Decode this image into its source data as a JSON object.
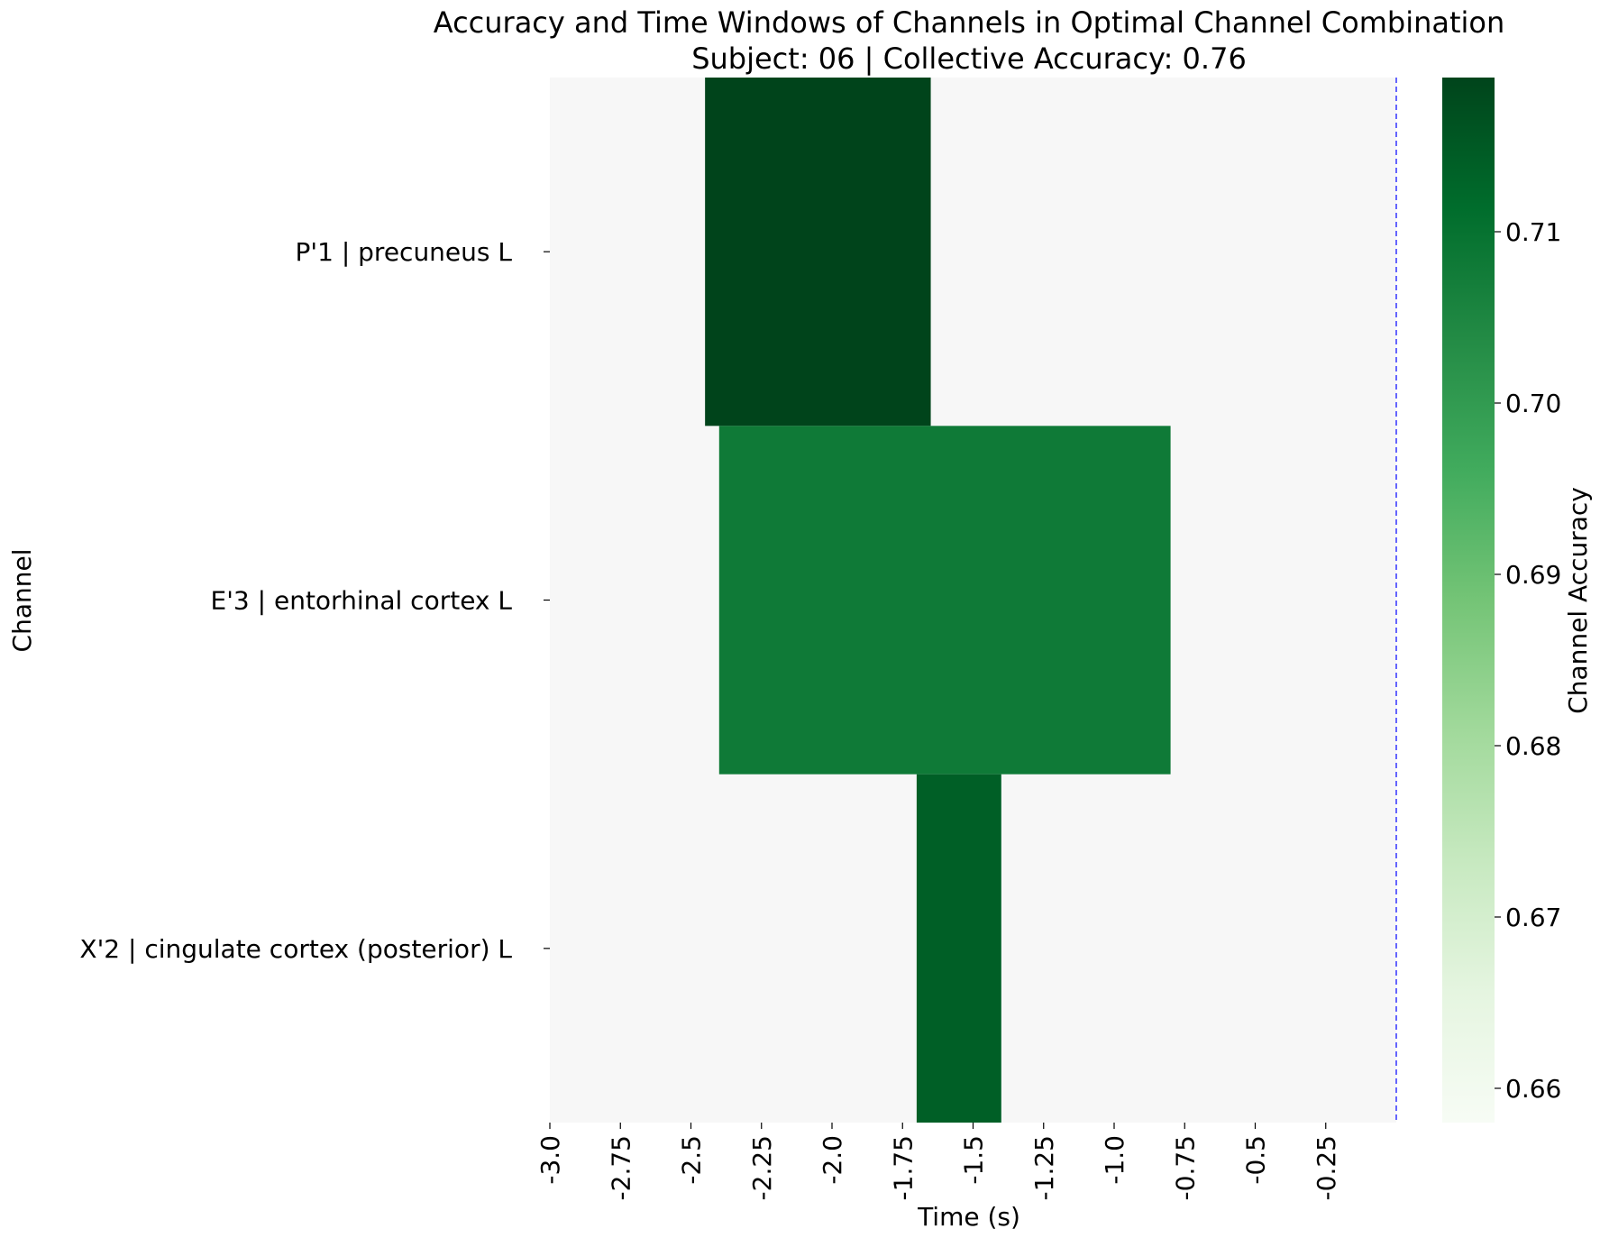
{
  "chart_data": {
    "type": "heatmap",
    "title": "Accuracy and Time Windows of Channels in Optimal Channel Combination",
    "subtitle": "Subject: 06 | Collective Accuracy: 0.76",
    "xlabel": "Time (s)",
    "ylabel": "Channel",
    "xlim": [
      -3.0,
      0.0
    ],
    "xticks": [
      -3.0,
      -2.75,
      -2.5,
      -2.25,
      -2.0,
      -1.75,
      -1.5,
      -1.25,
      -1.0,
      -0.75,
      -0.5,
      -0.25
    ],
    "xtick_labels": [
      "-3.0",
      "-2.75",
      "-2.5",
      "-2.25",
      "-2.0",
      "-1.75",
      "-1.5",
      "-1.25",
      "-1.0",
      "-0.75",
      "-0.5",
      "-0.25"
    ],
    "reference_line": {
      "x": 0.0,
      "color": "#0000ff",
      "style": "dashed"
    },
    "background_color": "#f7f7f7",
    "channels": [
      {
        "label": "P'1 | precuneus L",
        "start": -2.45,
        "end": -1.65,
        "accuracy": 0.719
      },
      {
        "label": "E'3 | entorhinal cortex L",
        "start": -2.4,
        "end": -0.8,
        "accuracy": 0.708
      },
      {
        "label": "X'2 | cingulate cortex (posterior) L",
        "start": -1.7,
        "end": -1.4,
        "accuracy": 0.714
      }
    ],
    "colorbar": {
      "label": "Channel Accuracy",
      "colormap": "Greens",
      "range": [
        0.658,
        0.719
      ],
      "ticks": [
        0.66,
        0.67,
        0.68,
        0.69,
        0.7,
        0.71
      ],
      "tick_labels": [
        "0.66",
        "0.67",
        "0.68",
        "0.69",
        "0.70",
        "0.71"
      ]
    },
    "grid": false,
    "legend": "none"
  }
}
